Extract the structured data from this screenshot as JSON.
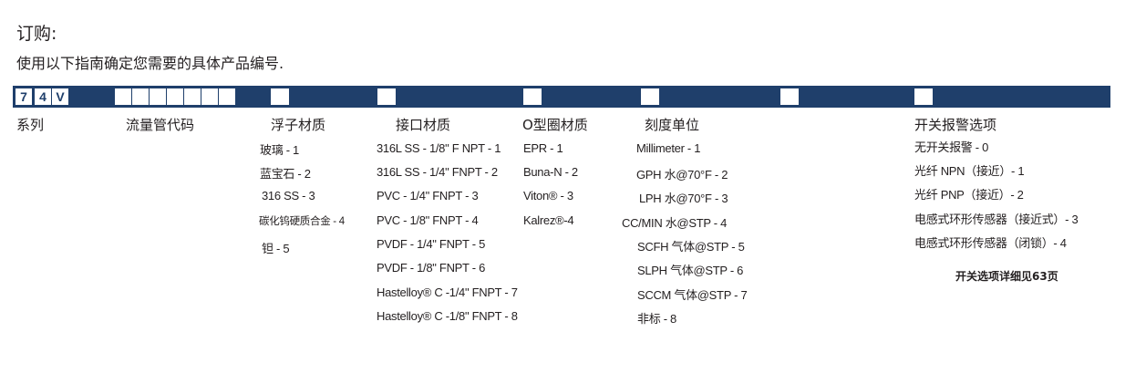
{
  "title": "订购:",
  "subtitle": "使用以下指南确定您需要的具体产品编号.",
  "code_boxes": [
    "7",
    "4",
    "V"
  ],
  "bar_color": "#1f3f6b",
  "headers": {
    "series": "系列",
    "flow_tube": "流量管代码",
    "float": "浮子材质",
    "connection": "接口材质",
    "oring": "O型圈材质",
    "scale": "刻度单位",
    "alarm": "开关报警选项"
  },
  "float_items": [
    "玻璃 - 1",
    "蓝宝石 - 2",
    "316 SS - 3",
    "碳化钨硬质合金 - 4",
    "钽 - 5"
  ],
  "connection_items": [
    "316L SS - 1/8\" F NPT - 1",
    "316L SS - 1/4\" FNPT - 2",
    "PVC - 1/4\" FNPT - 3",
    "PVC - 1/8\" FNPT - 4",
    "PVDF - 1/4\" FNPT - 5",
    "PVDF - 1/8\" FNPT - 6",
    "Hastelloy® C -1/4\" FNPT - 7",
    "Hastelloy® C -1/8\" FNPT - 8"
  ],
  "oring_items": [
    "EPR - 1",
    "Buna-N - 2",
    "Viton® - 3",
    "Kalrez®-4"
  ],
  "scale_items": [
    "Millimeter - 1",
    "GPH 水@70°F - 2",
    "LPH 水@70°F - 3",
    "CC/MIN 水@STP - 4",
    "SCFH 气体@STP - 5",
    "SLPH 气体@STP - 6",
    "SCCM 气体@STP - 7",
    "非标 - 8"
  ],
  "alarm_items": [
    "无开关报警 - 0",
    "光纤 NPN（接近）- 1",
    "光纤 PNP（接近）- 2",
    "电感式环形传感器（接近式）- 3",
    "电感式环形传感器（闭锁）- 4"
  ],
  "note": "开关选项详细见63页"
}
